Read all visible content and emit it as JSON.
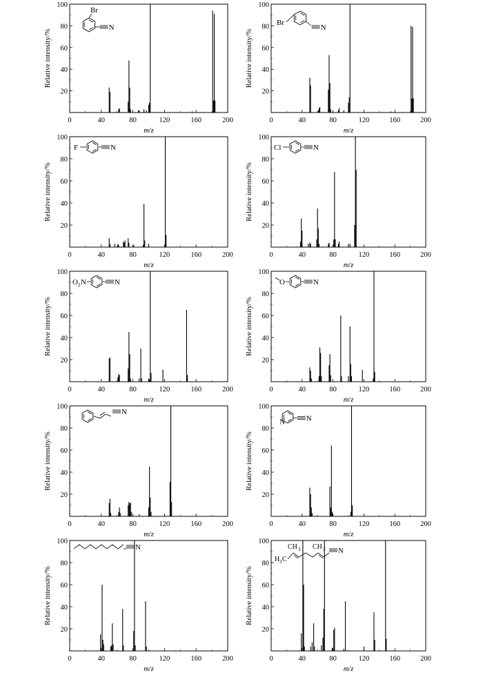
{
  "chart_data": [
    {
      "type": "bar",
      "label": "Br",
      "xlabel": "m/z",
      "ylabel": "Relative intensity/%",
      "xlim": [
        0,
        200
      ],
      "ylim": [
        0,
        100
      ],
      "xticks": [
        0,
        40,
        80,
        120,
        160,
        200
      ],
      "yticks": [
        20,
        40,
        60,
        80,
        100
      ],
      "peaks": [
        [
          50,
          23
        ],
        [
          51,
          19
        ],
        [
          62,
          3
        ],
        [
          63,
          4
        ],
        [
          74,
          10
        ],
        [
          75,
          48
        ],
        [
          76,
          23
        ],
        [
          77,
          3
        ],
        [
          87,
          2
        ],
        [
          88,
          2
        ],
        [
          94,
          3
        ],
        [
          97,
          2
        ],
        [
          100,
          7
        ],
        [
          101,
          9
        ],
        [
          102,
          100
        ],
        [
          155,
          1
        ],
        [
          181,
          94
        ],
        [
          182,
          11
        ],
        [
          183,
          91
        ],
        [
          184,
          11
        ]
      ]
    },
    {
      "type": "bar",
      "label": "Br",
      "xlabel": "m/z",
      "ylabel": "Relative intensity/%",
      "xlim": [
        0,
        200
      ],
      "ylim": [
        0,
        100
      ],
      "xticks": [
        0,
        40,
        80,
        120,
        160,
        200
      ],
      "yticks": [
        20,
        40,
        60,
        80,
        100
      ],
      "peaks": [
        [
          50,
          32
        ],
        [
          51,
          25
        ],
        [
          61,
          2
        ],
        [
          62,
          4
        ],
        [
          63,
          5
        ],
        [
          74,
          21
        ],
        [
          75,
          53
        ],
        [
          76,
          27
        ],
        [
          77,
          3
        ],
        [
          87,
          2
        ],
        [
          88,
          4
        ],
        [
          94,
          2
        ],
        [
          100,
          9
        ],
        [
          101,
          14
        ],
        [
          102,
          100
        ],
        [
          155,
          1
        ],
        [
          181,
          80
        ],
        [
          182,
          13
        ],
        [
          183,
          79
        ],
        [
          184,
          13
        ]
      ]
    },
    {
      "type": "bar",
      "label": "F",
      "xlabel": "m/z",
      "ylabel": "Relative intensity/%",
      "xlim": [
        0,
        200
      ],
      "ylim": [
        0,
        100
      ],
      "xticks": [
        0,
        40,
        80,
        120,
        160,
        200
      ],
      "yticks": [
        20,
        40,
        60,
        80,
        100
      ],
      "peaks": [
        [
          50,
          8
        ],
        [
          51,
          3
        ],
        [
          57,
          3
        ],
        [
          61,
          3
        ],
        [
          62,
          2
        ],
        [
          68,
          5
        ],
        [
          69,
          4
        ],
        [
          70,
          6
        ],
        [
          74,
          8
        ],
        [
          75,
          4
        ],
        [
          81,
          2
        ],
        [
          93,
          2
        ],
        [
          94,
          39
        ],
        [
          95,
          6
        ],
        [
          100,
          3
        ],
        [
          121,
          100
        ],
        [
          122,
          11
        ]
      ]
    },
    {
      "type": "bar",
      "label": "Cl",
      "xlabel": "m/z",
      "ylabel": "Relative intensity/%",
      "xlim": [
        0,
        200
      ],
      "ylim": [
        0,
        100
      ],
      "xticks": [
        0,
        40,
        80,
        120,
        160,
        200
      ],
      "yticks": [
        20,
        40,
        60,
        80,
        100
      ],
      "peaks": [
        [
          38,
          5
        ],
        [
          39,
          26
        ],
        [
          40,
          15
        ],
        [
          48,
          3
        ],
        [
          50,
          4
        ],
        [
          51,
          3
        ],
        [
          59,
          7
        ],
        [
          60,
          35
        ],
        [
          61,
          17
        ],
        [
          62,
          3
        ],
        [
          74,
          3
        ],
        [
          75,
          4
        ],
        [
          81,
          7
        ],
        [
          82,
          68
        ],
        [
          83,
          7
        ],
        [
          87,
          3
        ],
        [
          88,
          5
        ],
        [
          100,
          3
        ],
        [
          102,
          3
        ],
        [
          108,
          20
        ],
        [
          109,
          100
        ],
        [
          110,
          70
        ]
      ]
    },
    {
      "type": "bar",
      "label": "O2N",
      "xlabel": "m/z",
      "ylabel": "Relative intensity/%",
      "xlim": [
        0,
        200
      ],
      "ylim": [
        0,
        100
      ],
      "xticks": [
        0,
        40,
        80,
        120,
        160,
        200
      ],
      "yticks": [
        20,
        40,
        60,
        80,
        100
      ],
      "peaks": [
        [
          50,
          21
        ],
        [
          51,
          22
        ],
        [
          61,
          4
        ],
        [
          62,
          7
        ],
        [
          63,
          6
        ],
        [
          74,
          12
        ],
        [
          75,
          45
        ],
        [
          76,
          25
        ],
        [
          77,
          3
        ],
        [
          88,
          3
        ],
        [
          90,
          30
        ],
        [
          91,
          3
        ],
        [
          100,
          3
        ],
        [
          101,
          2
        ],
        [
          102,
          100
        ],
        [
          103,
          8
        ],
        [
          118,
          11
        ],
        [
          148,
          65
        ],
        [
          149,
          6
        ]
      ]
    },
    {
      "type": "bar",
      "label": "O",
      "xlabel": "m/z",
      "ylabel": "Relative intensity/%",
      "xlim": [
        0,
        200
      ],
      "ylim": [
        0,
        100
      ],
      "xticks": [
        0,
        40,
        80,
        120,
        160,
        200
      ],
      "yticks": [
        20,
        40,
        60,
        80,
        100
      ],
      "peaks": [
        [
          50,
          13
        ],
        [
          51,
          10
        ],
        [
          52,
          3
        ],
        [
          62,
          5
        ],
        [
          63,
          31
        ],
        [
          64,
          26
        ],
        [
          65,
          5
        ],
        [
          75,
          15
        ],
        [
          76,
          25
        ],
        [
          77,
          6
        ],
        [
          90,
          60
        ],
        [
          91,
          5
        ],
        [
          100,
          5
        ],
        [
          102,
          50
        ],
        [
          103,
          16
        ],
        [
          104,
          5
        ],
        [
          118,
          11
        ],
        [
          132,
          3
        ],
        [
          133,
          100
        ],
        [
          134,
          9
        ]
      ]
    },
    {
      "type": "bar",
      "label": "N",
      "xlabel": "m/z",
      "ylabel": "Relative intensity/%",
      "xlim": [
        0,
        200
      ],
      "ylim": [
        0,
        100
      ],
      "xticks": [
        0,
        40,
        80,
        120,
        160,
        200
      ],
      "yticks": [
        20,
        40,
        60,
        80,
        100
      ],
      "peaks": [
        [
          50,
          12
        ],
        [
          51,
          16
        ],
        [
          52,
          3
        ],
        [
          62,
          4
        ],
        [
          63,
          8
        ],
        [
          64,
          3
        ],
        [
          74,
          10
        ],
        [
          75,
          13
        ],
        [
          76,
          12
        ],
        [
          77,
          12
        ],
        [
          78,
          4
        ],
        [
          88,
          2
        ],
        [
          100,
          8
        ],
        [
          101,
          45
        ],
        [
          102,
          17
        ],
        [
          103,
          4
        ],
        [
          127,
          31
        ],
        [
          128,
          100
        ],
        [
          129,
          13
        ]
      ]
    },
    {
      "type": "bar",
      "label": "N",
      "xlabel": "m/z",
      "ylabel": "Relative intensity/%",
      "xlim": [
        0,
        200
      ],
      "ylim": [
        0,
        100
      ],
      "xticks": [
        0,
        40,
        80,
        120,
        160,
        200
      ],
      "yticks": [
        20,
        40,
        60,
        80,
        100
      ],
      "peaks": [
        [
          50,
          26
        ],
        [
          51,
          20
        ],
        [
          52,
          8
        ],
        [
          53,
          3
        ],
        [
          76,
          27
        ],
        [
          77,
          8
        ],
        [
          78,
          64
        ],
        [
          79,
          4
        ],
        [
          103,
          4
        ],
        [
          104,
          100
        ],
        [
          105,
          10
        ]
      ]
    },
    {
      "type": "bar",
      "label": "N",
      "xlabel": "m/z",
      "ylabel": "Relative intensity/%",
      "xlim": [
        0,
        200
      ],
      "ylim": [
        0,
        100
      ],
      "xticks": [
        0,
        40,
        80,
        120,
        160,
        200
      ],
      "yticks": [
        20,
        40,
        60,
        80,
        100
      ],
      "peaks": [
        [
          39,
          15
        ],
        [
          41,
          60
        ],
        [
          42,
          10
        ],
        [
          43,
          6
        ],
        [
          52,
          4
        ],
        [
          53,
          5
        ],
        [
          54,
          25
        ],
        [
          55,
          6
        ],
        [
          67,
          38
        ],
        [
          68,
          5
        ],
        [
          81,
          18
        ],
        [
          82,
          100
        ],
        [
          83,
          5
        ],
        [
          96,
          45
        ],
        [
          97,
          4
        ]
      ]
    },
    {
      "type": "bar",
      "label": "CH3",
      "xlabel": "m/z",
      "ylabel": "Relative intensity/%",
      "xlim": [
        0,
        200
      ],
      "ylim": [
        0,
        100
      ],
      "xticks": [
        0,
        40,
        80,
        120,
        160,
        200
      ],
      "yticks": [
        20,
        40,
        60,
        80,
        100
      ],
      "peaks": [
        [
          39,
          16
        ],
        [
          41,
          100
        ],
        [
          42,
          60
        ],
        [
          43,
          4
        ],
        [
          51,
          4
        ],
        [
          53,
          8
        ],
        [
          55,
          25
        ],
        [
          56,
          4
        ],
        [
          65,
          5
        ],
        [
          67,
          12
        ],
        [
          68,
          38
        ],
        [
          69,
          100
        ],
        [
          79,
          3
        ],
        [
          81,
          19
        ],
        [
          82,
          21
        ],
        [
          94,
          2
        ],
        [
          96,
          45
        ],
        [
          120,
          4
        ],
        [
          133,
          35
        ],
        [
          134,
          10
        ],
        [
          148,
          100
        ],
        [
          149,
          11
        ]
      ]
    }
  ],
  "labels": {
    "ylabel": "Relative intensity/%",
    "xlabel_m": "m",
    "xlabel_slash": "/",
    "xlabel_z": "z",
    "structures": [
      {
        "texts": [
          "Br",
          "N"
        ]
      },
      {
        "texts": [
          "Br",
          "N"
        ]
      },
      {
        "texts": [
          "F",
          "N"
        ]
      },
      {
        "texts": [
          "Cl",
          "N"
        ]
      },
      {
        "texts": [
          "O",
          "2",
          "N",
          "N"
        ]
      },
      {
        "texts": [
          "O",
          "N"
        ]
      },
      {
        "texts": [
          "N"
        ]
      },
      {
        "texts": [
          "N",
          "N"
        ]
      },
      {
        "texts": [
          "N"
        ]
      },
      {
        "texts": [
          "CH",
          "3",
          "CH",
          "3",
          "H",
          "3",
          "C",
          "N"
        ]
      }
    ]
  }
}
